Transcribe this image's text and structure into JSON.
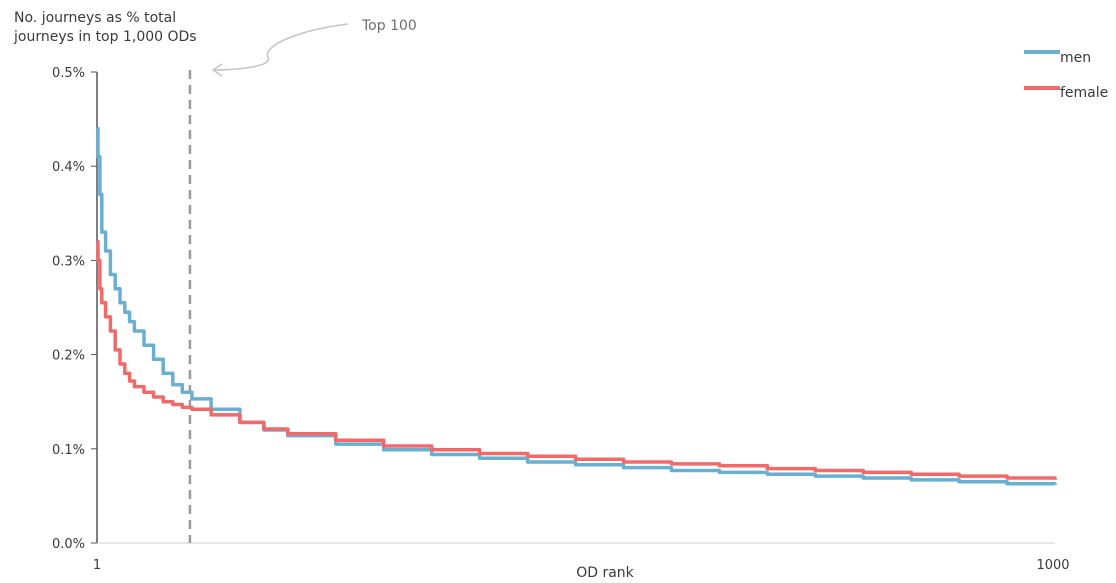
{
  "chart_data": {
    "type": "line",
    "title": "",
    "ylabel": "No. journeys as % total journeys in top 1,000 ODs",
    "ylabel_lines": [
      "No. journeys as % total",
      "journeys in top 1,000 ODs"
    ],
    "xlabel": "OD rank",
    "xlim": [
      1,
      1000
    ],
    "ylim": [
      0,
      0.5
    ],
    "y_ticks": [
      0,
      0.1,
      0.2,
      0.3,
      0.4,
      0.5
    ],
    "y_tick_labels": [
      "0.0%",
      "0.1%",
      "0.2%",
      "0.3%",
      "0.4%",
      "0.5%"
    ],
    "x_ticks": [
      1,
      1000
    ],
    "x_tick_labels": [
      "1",
      "1000"
    ],
    "grid": false,
    "legend_position": "top-right",
    "annotation": {
      "text": "Top 100",
      "x": 100
    },
    "series": [
      {
        "name": "men",
        "color": "#6aaed0",
        "x": [
          1,
          2,
          4,
          6,
          10,
          15,
          20,
          25,
          30,
          35,
          40,
          50,
          60,
          70,
          80,
          90,
          100,
          120,
          150,
          175,
          200,
          250,
          300,
          350,
          400,
          450,
          500,
          550,
          600,
          650,
          700,
          750,
          800,
          850,
          900,
          950,
          1000
        ],
        "y": [
          0.44,
          0.41,
          0.37,
          0.33,
          0.31,
          0.285,
          0.27,
          0.255,
          0.245,
          0.235,
          0.225,
          0.21,
          0.195,
          0.18,
          0.168,
          0.16,
          0.153,
          0.142,
          0.128,
          0.12,
          0.114,
          0.105,
          0.099,
          0.094,
          0.09,
          0.086,
          0.083,
          0.08,
          0.077,
          0.075,
          0.073,
          0.071,
          0.069,
          0.067,
          0.065,
          0.063,
          0.062
        ]
      },
      {
        "name": "female",
        "color": "#f06a6a",
        "x": [
          1,
          2,
          4,
          6,
          10,
          15,
          20,
          25,
          30,
          35,
          40,
          50,
          60,
          70,
          80,
          90,
          100,
          120,
          150,
          175,
          200,
          250,
          300,
          350,
          400,
          450,
          500,
          550,
          600,
          650,
          700,
          750,
          800,
          850,
          900,
          950,
          1000
        ],
        "y": [
          0.32,
          0.3,
          0.27,
          0.255,
          0.24,
          0.225,
          0.205,
          0.19,
          0.18,
          0.172,
          0.166,
          0.16,
          0.155,
          0.15,
          0.147,
          0.144,
          0.142,
          0.136,
          0.128,
          0.121,
          0.116,
          0.109,
          0.103,
          0.099,
          0.095,
          0.092,
          0.089,
          0.086,
          0.084,
          0.082,
          0.079,
          0.077,
          0.075,
          0.073,
          0.071,
          0.069,
          0.067
        ]
      }
    ]
  }
}
